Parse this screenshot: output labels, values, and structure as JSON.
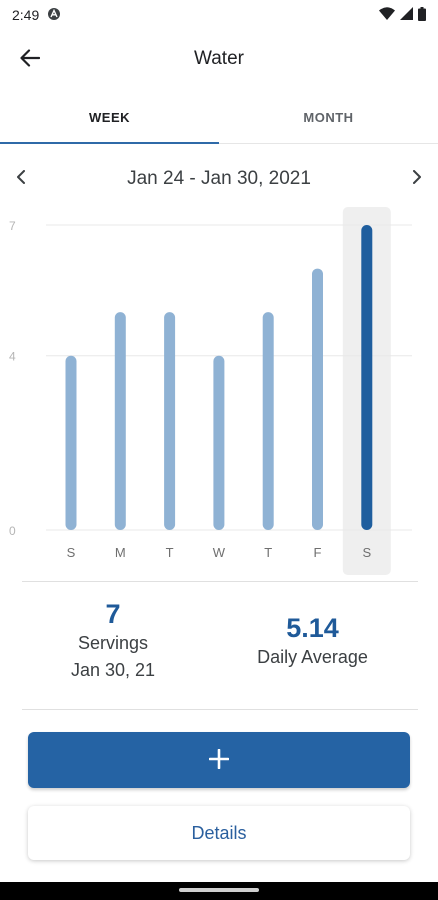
{
  "status_bar": {
    "time": "2:49"
  },
  "app_bar": {
    "title": "Water"
  },
  "tabs": [
    {
      "label": "WEEK",
      "active": true
    },
    {
      "label": "MONTH",
      "active": false
    }
  ],
  "date_range": {
    "label": "Jan 24 - Jan 30, 2021"
  },
  "chart_data": {
    "type": "bar",
    "categories": [
      "S",
      "M",
      "T",
      "W",
      "T",
      "F",
      "S"
    ],
    "values": [
      4,
      5,
      5,
      4,
      5,
      6,
      7
    ],
    "ylim": [
      0,
      7
    ],
    "yticks": [
      0,
      4,
      7
    ],
    "grid": true,
    "selected_index": 6,
    "title": "",
    "xlabel": "",
    "ylabel": ""
  },
  "stats": {
    "servings_value": "7",
    "servings_label": "Servings",
    "servings_date": "Jan 30, 21",
    "average_value": "5.14",
    "average_label": "Daily Average"
  },
  "actions": {
    "add_label": "+",
    "details_label": "Details"
  },
  "colors": {
    "bar": "#8fb2d4",
    "bar_selected": "#1f5e9e",
    "accent": "#2563a4",
    "selected_band": "#efefef"
  }
}
